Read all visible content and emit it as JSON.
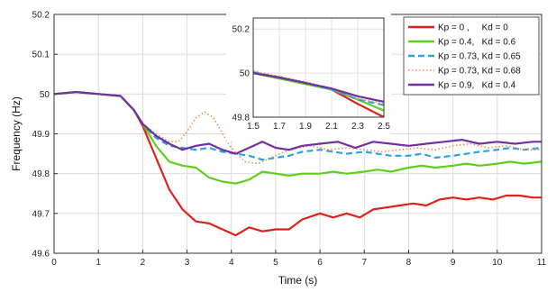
{
  "chart_data": {
    "type": "line",
    "xlabel": "Time (s)",
    "ylabel": "Frequency (Hz)",
    "xlim": [
      0,
      11
    ],
    "ylim": [
      49.6,
      50.2
    ],
    "xticks": [
      "0",
      "1",
      "2",
      "3",
      "4",
      "5",
      "6",
      "7",
      "8",
      "9",
      "10",
      "11"
    ],
    "yticks": [
      "49.6",
      "49.7",
      "49.8",
      "49.9",
      "50",
      "50.1",
      "50.2"
    ],
    "grid": true,
    "legend_position": "top-right",
    "series": [
      {
        "name": "Kp = 0 ,     Kd = 0",
        "color": "#e0201b",
        "style": "solid",
        "points": [
          [
            0,
            50.0
          ],
          [
            0.5,
            50.005
          ],
          [
            1.0,
            50.0
          ],
          [
            1.5,
            49.995
          ],
          [
            1.8,
            49.96
          ],
          [
            2.0,
            49.92
          ],
          [
            2.3,
            49.84
          ],
          [
            2.6,
            49.76
          ],
          [
            2.9,
            49.71
          ],
          [
            3.2,
            49.68
          ],
          [
            3.5,
            49.675
          ],
          [
            3.8,
            49.66
          ],
          [
            4.1,
            49.645
          ],
          [
            4.4,
            49.665
          ],
          [
            4.7,
            49.655
          ],
          [
            5.0,
            49.66
          ],
          [
            5.3,
            49.66
          ],
          [
            5.6,
            49.685
          ],
          [
            6.0,
            49.7
          ],
          [
            6.3,
            49.69
          ],
          [
            6.6,
            49.7
          ],
          [
            6.9,
            49.69
          ],
          [
            7.2,
            49.71
          ],
          [
            7.5,
            49.715
          ],
          [
            7.8,
            49.72
          ],
          [
            8.1,
            49.725
          ],
          [
            8.4,
            49.72
          ],
          [
            8.7,
            49.735
          ],
          [
            9.0,
            49.74
          ],
          [
            9.3,
            49.735
          ],
          [
            9.6,
            49.74
          ],
          [
            9.9,
            49.735
          ],
          [
            10.2,
            49.745
          ],
          [
            10.5,
            49.745
          ],
          [
            10.8,
            49.74
          ],
          [
            11.0,
            49.74
          ]
        ]
      },
      {
        "name": "Kp = 0.4,   Kd = 0.6",
        "color": "#5fcf1e",
        "style": "solid",
        "points": [
          [
            0,
            50.0
          ],
          [
            0.5,
            50.005
          ],
          [
            1.0,
            50.0
          ],
          [
            1.5,
            49.995
          ],
          [
            1.8,
            49.96
          ],
          [
            2.0,
            49.925
          ],
          [
            2.3,
            49.87
          ],
          [
            2.6,
            49.83
          ],
          [
            2.9,
            49.82
          ],
          [
            3.2,
            49.815
          ],
          [
            3.5,
            49.79
          ],
          [
            3.8,
            49.78
          ],
          [
            4.1,
            49.775
          ],
          [
            4.4,
            49.785
          ],
          [
            4.7,
            49.805
          ],
          [
            5.0,
            49.8
          ],
          [
            5.3,
            49.795
          ],
          [
            5.6,
            49.8
          ],
          [
            6.0,
            49.8
          ],
          [
            6.3,
            49.805
          ],
          [
            6.6,
            49.8
          ],
          [
            7.0,
            49.805
          ],
          [
            7.3,
            49.81
          ],
          [
            7.6,
            49.805
          ],
          [
            8.0,
            49.815
          ],
          [
            8.3,
            49.82
          ],
          [
            8.6,
            49.815
          ],
          [
            9.0,
            49.82
          ],
          [
            9.3,
            49.825
          ],
          [
            9.6,
            49.82
          ],
          [
            10.0,
            49.825
          ],
          [
            10.3,
            49.83
          ],
          [
            10.6,
            49.825
          ],
          [
            11.0,
            49.83
          ]
        ]
      },
      {
        "name": "Kp = 0.73, Kd = 0.65",
        "color": "#2aa3e0",
        "style": "dashed",
        "points": [
          [
            0,
            50.0
          ],
          [
            0.5,
            50.005
          ],
          [
            1.0,
            50.0
          ],
          [
            1.5,
            49.995
          ],
          [
            1.8,
            49.96
          ],
          [
            2.0,
            49.925
          ],
          [
            2.3,
            49.89
          ],
          [
            2.6,
            49.87
          ],
          [
            2.9,
            49.865
          ],
          [
            3.2,
            49.86
          ],
          [
            3.5,
            49.865
          ],
          [
            3.8,
            49.855
          ],
          [
            4.1,
            49.85
          ],
          [
            4.4,
            49.845
          ],
          [
            4.7,
            49.835
          ],
          [
            5.0,
            49.84
          ],
          [
            5.3,
            49.845
          ],
          [
            5.6,
            49.855
          ],
          [
            6.0,
            49.86
          ],
          [
            6.3,
            49.855
          ],
          [
            6.6,
            49.85
          ],
          [
            7.0,
            49.855
          ],
          [
            7.3,
            49.85
          ],
          [
            7.6,
            49.845
          ],
          [
            8.0,
            49.845
          ],
          [
            8.3,
            49.85
          ],
          [
            8.6,
            49.84
          ],
          [
            9.0,
            49.845
          ],
          [
            9.3,
            49.85
          ],
          [
            9.6,
            49.855
          ],
          [
            10.0,
            49.86
          ],
          [
            10.3,
            49.865
          ],
          [
            10.6,
            49.86
          ],
          [
            11.0,
            49.865
          ]
        ]
      },
      {
        "name": "Kp = 0.73, Kd = 0.68",
        "color": "#f08a4b",
        "style": "dotted",
        "points": [
          [
            0,
            50.0
          ],
          [
            0.5,
            50.005
          ],
          [
            1.0,
            50.0
          ],
          [
            1.5,
            49.995
          ],
          [
            1.8,
            49.96
          ],
          [
            2.0,
            49.925
          ],
          [
            2.3,
            49.9
          ],
          [
            2.6,
            49.88
          ],
          [
            2.8,
            49.88
          ],
          [
            3.0,
            49.905
          ],
          [
            3.2,
            49.94
          ],
          [
            3.4,
            49.955
          ],
          [
            3.6,
            49.94
          ],
          [
            3.8,
            49.9
          ],
          [
            4.0,
            49.865
          ],
          [
            4.3,
            49.83
          ],
          [
            4.6,
            49.825
          ],
          [
            4.9,
            49.84
          ],
          [
            5.2,
            49.855
          ],
          [
            5.5,
            49.865
          ],
          [
            5.8,
            49.87
          ],
          [
            6.2,
            49.86
          ],
          [
            6.6,
            49.865
          ],
          [
            7.0,
            49.86
          ],
          [
            7.4,
            49.855
          ],
          [
            7.8,
            49.86
          ],
          [
            8.2,
            49.865
          ],
          [
            8.6,
            49.86
          ],
          [
            9.0,
            49.87
          ],
          [
            9.4,
            49.875
          ],
          [
            9.8,
            49.865
          ],
          [
            10.2,
            49.87
          ],
          [
            10.6,
            49.86
          ],
          [
            11.0,
            49.86
          ]
        ]
      },
      {
        "name": "Kp = 0.9,   Kd = 0.4",
        "color": "#7030a0",
        "style": "solid",
        "points": [
          [
            0,
            50.0
          ],
          [
            0.5,
            50.005
          ],
          [
            1.0,
            50.0
          ],
          [
            1.5,
            49.995
          ],
          [
            1.8,
            49.96
          ],
          [
            2.0,
            49.925
          ],
          [
            2.3,
            49.895
          ],
          [
            2.6,
            49.875
          ],
          [
            2.9,
            49.86
          ],
          [
            3.2,
            49.87
          ],
          [
            3.5,
            49.875
          ],
          [
            3.8,
            49.86
          ],
          [
            4.1,
            49.85
          ],
          [
            4.4,
            49.865
          ],
          [
            4.7,
            49.88
          ],
          [
            5.0,
            49.865
          ],
          [
            5.3,
            49.86
          ],
          [
            5.6,
            49.87
          ],
          [
            6.0,
            49.875
          ],
          [
            6.4,
            49.88
          ],
          [
            6.8,
            49.865
          ],
          [
            7.2,
            49.88
          ],
          [
            7.6,
            49.875
          ],
          [
            8.0,
            49.87
          ],
          [
            8.4,
            49.875
          ],
          [
            8.8,
            49.88
          ],
          [
            9.2,
            49.885
          ],
          [
            9.6,
            49.875
          ],
          [
            10.0,
            49.88
          ],
          [
            10.4,
            49.875
          ],
          [
            10.8,
            49.88
          ],
          [
            11.0,
            49.88
          ]
        ]
      }
    ],
    "inset": {
      "xlim": [
        1.5,
        2.5
      ],
      "ylim": [
        49.8,
        50.25
      ],
      "xticks": [
        "1.5",
        "1.7",
        "1.9",
        "2.1",
        "2.3",
        "2.5"
      ],
      "yticks": [
        "49.8",
        "50",
        "50.2"
      ],
      "series": [
        {
          "name": "Kp = 0 ,     Kd = 0",
          "points": [
            [
              1.5,
              50.0
            ],
            [
              1.7,
              49.98
            ],
            [
              1.9,
              49.955
            ],
            [
              2.1,
              49.925
            ],
            [
              2.3,
              49.86
            ],
            [
              2.5,
              49.8
            ]
          ]
        },
        {
          "name": "Kp = 0.4,   Kd = 0.6",
          "points": [
            [
              1.5,
              50.0
            ],
            [
              1.7,
              49.975
            ],
            [
              1.9,
              49.95
            ],
            [
              2.1,
              49.925
            ],
            [
              2.3,
              49.88
            ],
            [
              2.5,
              49.83
            ]
          ]
        },
        {
          "name": "Kp = 0.73, Kd = 0.65",
          "points": [
            [
              1.5,
              50.005
            ],
            [
              1.7,
              49.98
            ],
            [
              1.9,
              49.955
            ],
            [
              2.1,
              49.925
            ],
            [
              2.3,
              49.88
            ],
            [
              2.5,
              49.855
            ]
          ]
        },
        {
          "name": "Kp = 0.73, Kd = 0.68",
          "points": [
            [
              1.5,
              50.01
            ],
            [
              1.7,
              49.985
            ],
            [
              1.9,
              49.96
            ],
            [
              2.1,
              49.93
            ],
            [
              2.3,
              49.885
            ],
            [
              2.5,
              49.86
            ]
          ]
        },
        {
          "name": "Kp = 0.9,   Kd = 0.4",
          "points": [
            [
              1.5,
              50.0
            ],
            [
              1.7,
              49.98
            ],
            [
              1.9,
              49.955
            ],
            [
              2.1,
              49.93
            ],
            [
              2.3,
              49.895
            ],
            [
              2.5,
              49.87
            ]
          ]
        }
      ]
    }
  }
}
